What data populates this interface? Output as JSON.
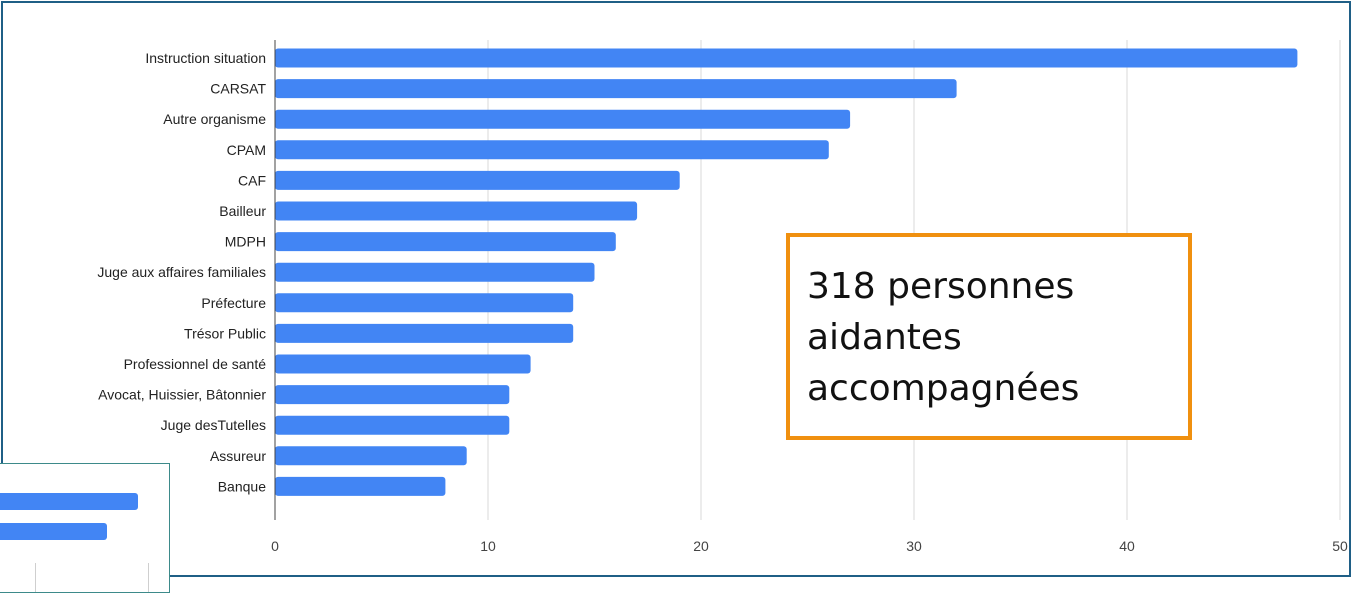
{
  "colors": {
    "bar": "#4285f4",
    "annotation_border": "#f0900f",
    "frame_border": "#1f5f86",
    "grid": "#d9d9d9"
  },
  "annotation": {
    "line1": "318 personnes",
    "line2": "aidantes",
    "line3": "accompagnées"
  },
  "inset": {
    "values": [
      0.9,
      0.7
    ]
  },
  "chart_data": {
    "type": "bar",
    "orientation": "horizontal",
    "categories": [
      "Instruction situation",
      "CARSAT",
      "Autre organisme",
      "CPAM",
      "CAF",
      "Bailleur",
      "MDPH",
      "Juge aux affaires familiales",
      "Préfecture",
      "Trésor Public",
      "Professionnel de santé",
      "Avocat, Huissier, Bâtonnier",
      "Juge desTutelles",
      "Assureur",
      "Banque"
    ],
    "values": [
      48,
      32,
      27,
      26,
      19,
      17,
      16,
      15,
      14,
      14,
      12,
      11,
      11,
      9,
      8
    ],
    "xlim": [
      0,
      50
    ],
    "xticks": [
      "0",
      "10",
      "20",
      "30",
      "40",
      "50"
    ],
    "grid": true,
    "title": "",
    "xlabel": "",
    "ylabel": ""
  }
}
